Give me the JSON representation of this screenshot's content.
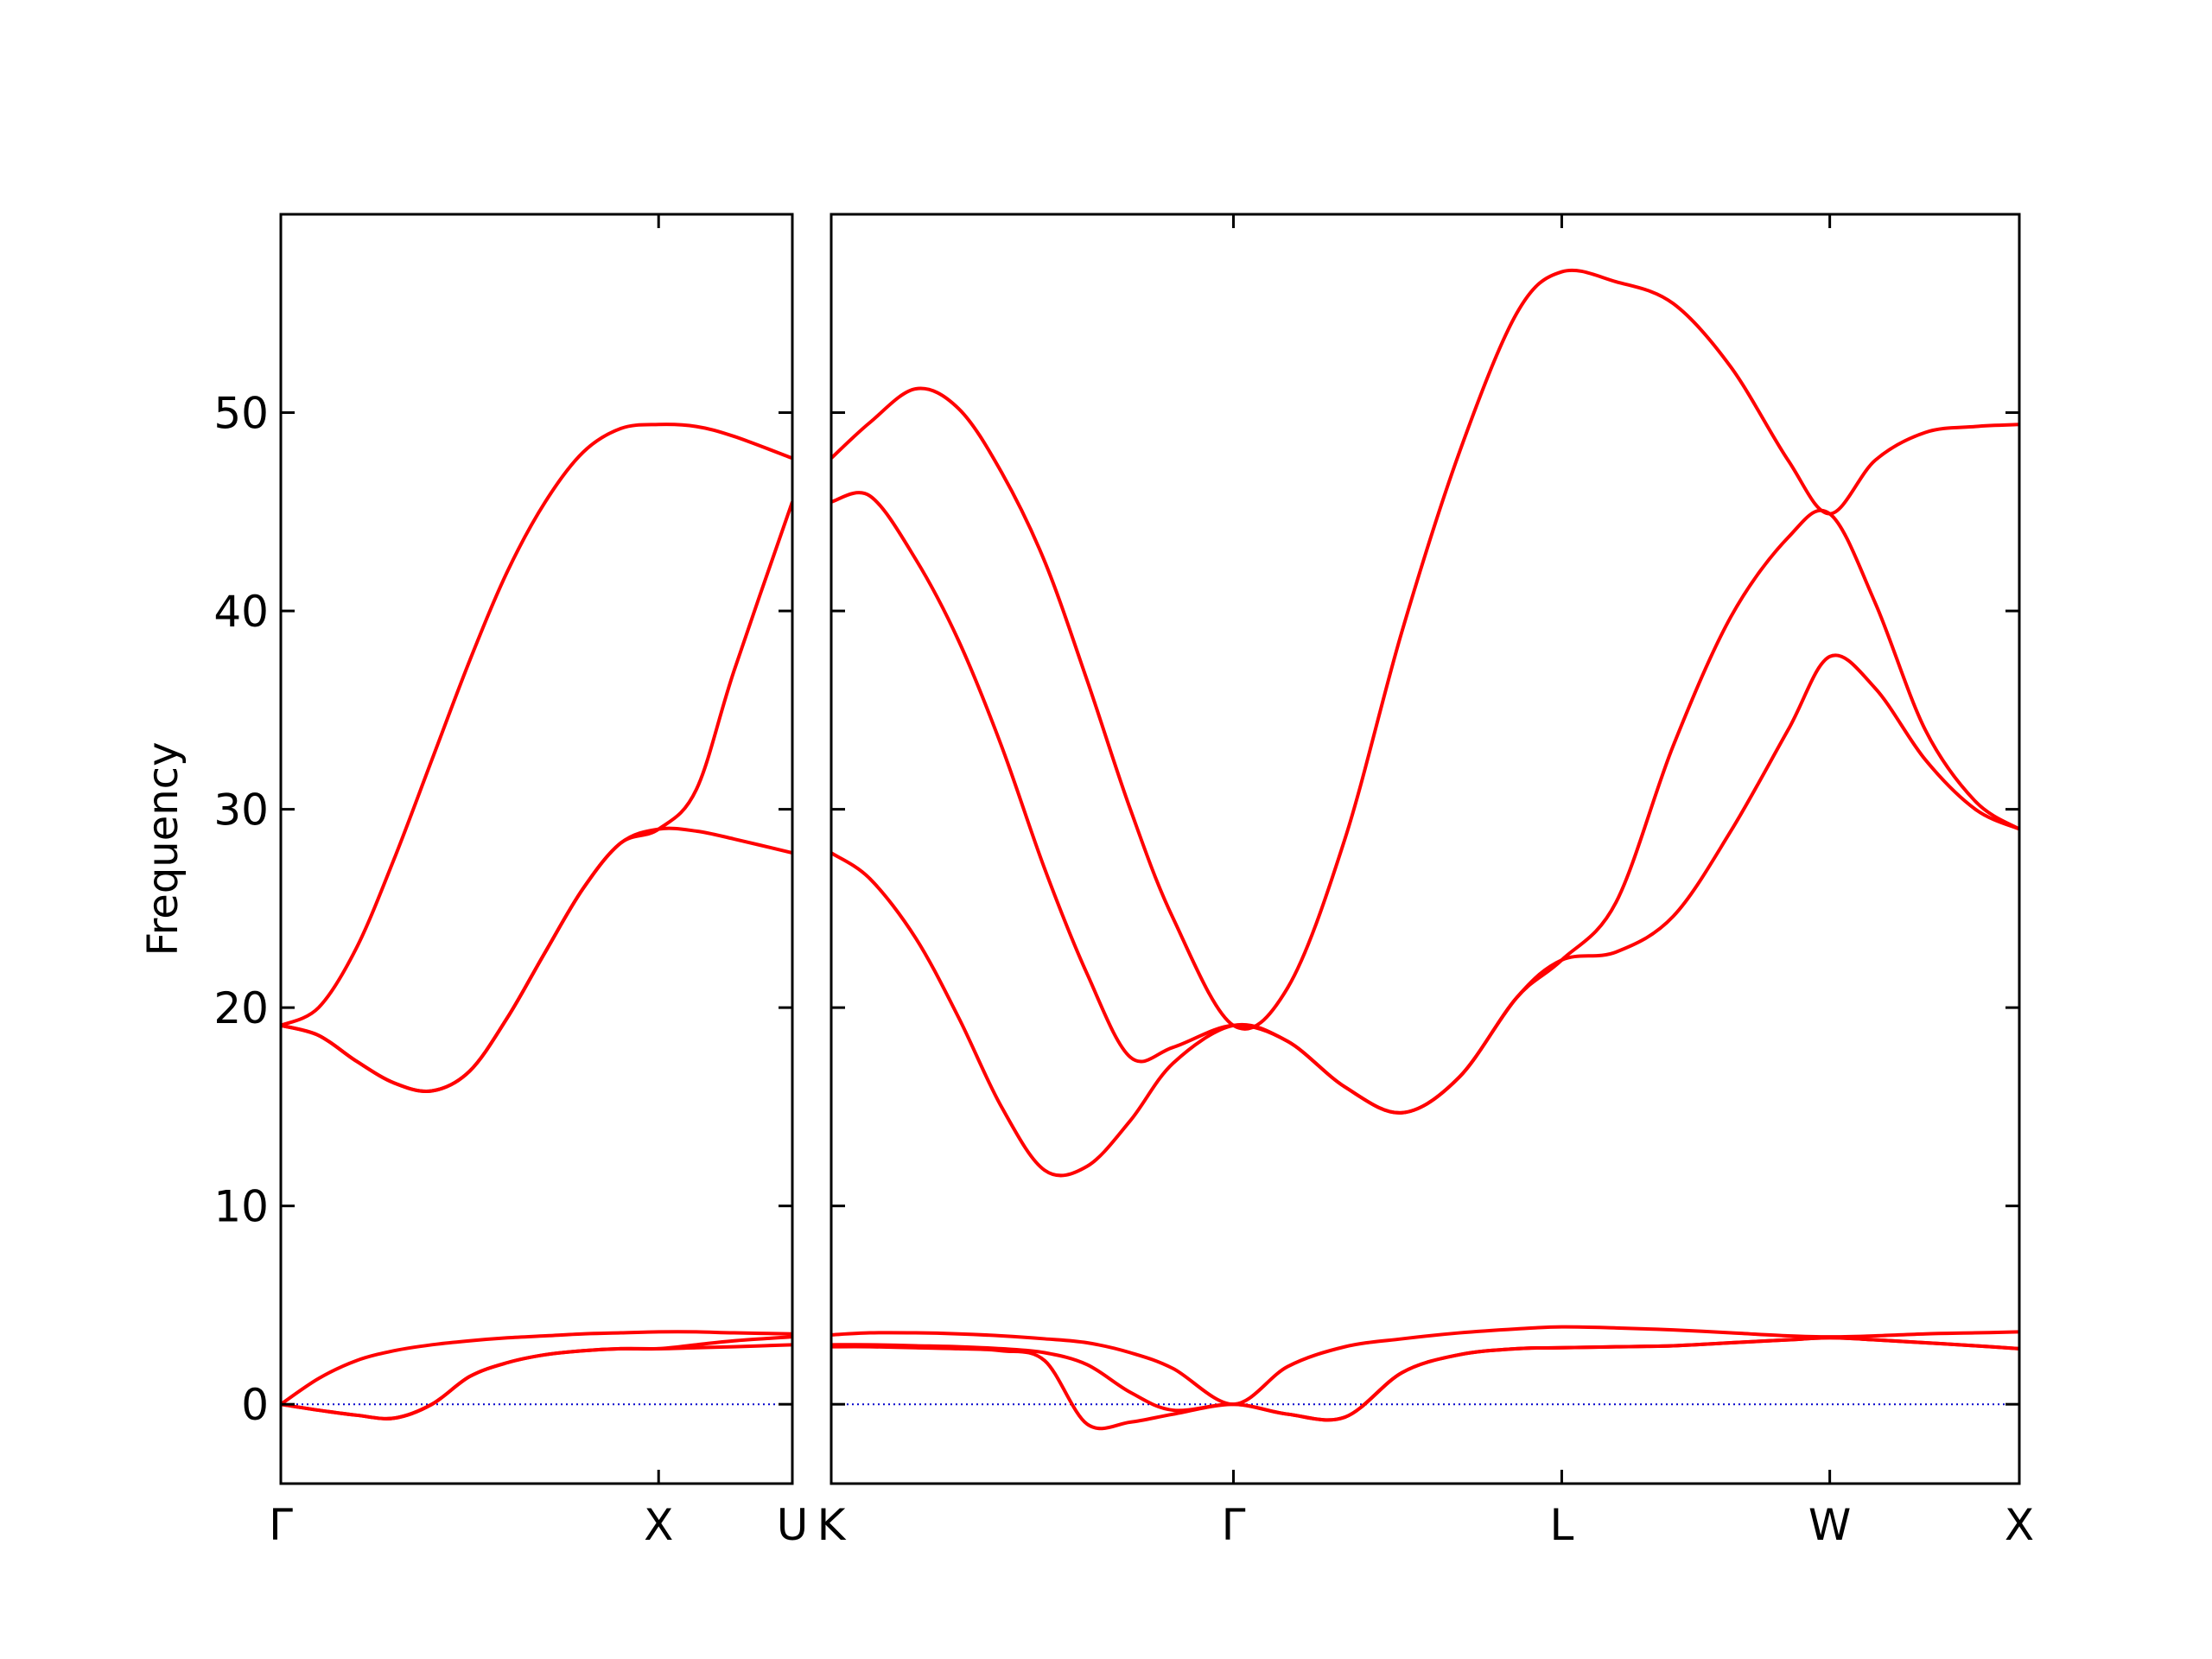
{
  "chart_data": [
    {
      "type": "line",
      "y_label": "Frequency",
      "ytick_labels": true,
      "x": [
        0,
        0.1,
        0.2,
        0.3,
        0.4,
        0.5,
        0.6,
        0.7,
        0.8,
        0.9,
        1.0,
        1.1,
        1.2,
        1.354
      ],
      "xlim": [
        0,
        1.354
      ],
      "ylim": [
        -4,
        60
      ],
      "yticks": [
        0,
        10,
        20,
        30,
        40,
        50
      ],
      "xticks": [
        {
          "value": 0,
          "label": "Γ"
        },
        {
          "value": 1.0,
          "label": "X"
        },
        {
          "value": 1.354,
          "label": "U"
        }
      ],
      "hline": {
        "y": 0,
        "color": "#0000cc"
      },
      "series": [
        {
          "color": "#ff0000",
          "values": [
            0,
            -0.3,
            -0.55,
            -0.7,
            0.0,
            1.4,
            2.1,
            2.5,
            2.7,
            2.8,
            2.8,
            2.85,
            2.9,
            3.0
          ]
        },
        {
          "color": "#ff0000",
          "values": [
            0,
            -0.3,
            -0.55,
            -0.7,
            0.0,
            1.4,
            2.1,
            2.5,
            2.7,
            2.8,
            2.8,
            3.0,
            3.2,
            3.4
          ]
        },
        {
          "color": "#ff0000",
          "values": [
            0,
            1.3,
            2.2,
            2.7,
            3.0,
            3.2,
            3.35,
            3.45,
            3.55,
            3.6,
            3.65,
            3.65,
            3.6,
            3.55
          ]
        },
        {
          "color": "#ff0000",
          "values": [
            19.1,
            18.6,
            17.3,
            16.2,
            15.8,
            16.8,
            19.5,
            22.8,
            26.0,
            28.3,
            29.0,
            28.9,
            28.5,
            27.8
          ]
        },
        {
          "color": "#ff0000",
          "values": [
            19.1,
            18.6,
            17.3,
            16.2,
            15.8,
            16.8,
            19.5,
            22.8,
            26.0,
            28.3,
            29.0,
            31.0,
            37.0,
            45.5
          ]
        },
        {
          "color": "#ff0000",
          "values": [
            19.1,
            20.0,
            23.0,
            27.5,
            32.5,
            37.5,
            42.0,
            45.5,
            48.0,
            49.2,
            49.4,
            49.3,
            48.8,
            47.7
          ]
        }
      ]
    },
    {
      "type": "line",
      "ytick_labels": false,
      "x": [
        1.354,
        1.456,
        1.577,
        1.69,
        1.803,
        1.917,
        2.029,
        2.143,
        2.256,
        2.415,
        2.558,
        2.709,
        2.86,
        3.011,
        3.162,
        3.281,
        3.424,
        3.575,
        3.727,
        3.878,
        3.988,
        4.108,
        4.24,
        4.372,
        4.488
      ],
      "xlim": [
        1.354,
        4.488
      ],
      "ylim": [
        -4,
        60
      ],
      "yticks": [
        0,
        10,
        20,
        30,
        40,
        50
      ],
      "xticks": [
        {
          "value": 1.354,
          "label": "K"
        },
        {
          "value": 2.415,
          "label": "Γ"
        },
        {
          "value": 3.281,
          "label": "L"
        },
        {
          "value": 3.988,
          "label": "W"
        },
        {
          "value": 4.488,
          "label": "X"
        }
      ],
      "hline": {
        "y": 0,
        "color": "#0000cc"
      },
      "series": [
        {
          "color": "#ff0000",
          "values": [
            2.9,
            2.9,
            2.85,
            2.8,
            2.7,
            2.2,
            -1.0,
            -0.9,
            -0.5,
            0,
            -0.5,
            -0.65,
            1.6,
            2.5,
            2.8,
            2.85,
            2.9,
            2.95,
            3.1,
            3.25,
            3.35,
            3.25,
            3.1,
            2.95,
            2.8
          ]
        },
        {
          "color": "#ff0000",
          "values": [
            3.0,
            3.0,
            2.95,
            2.9,
            2.8,
            2.6,
            2.0,
            0.6,
            -0.3,
            0,
            -0.5,
            -0.65,
            1.6,
            2.5,
            2.8,
            2.85,
            2.9,
            2.95,
            3.1,
            3.25,
            3.35,
            3.25,
            3.1,
            2.95,
            2.8
          ]
        },
        {
          "color": "#ff0000",
          "values": [
            3.5,
            3.6,
            3.6,
            3.55,
            3.45,
            3.3,
            3.1,
            2.6,
            1.8,
            0,
            1.9,
            2.9,
            3.3,
            3.6,
            3.8,
            3.9,
            3.85,
            3.75,
            3.6,
            3.45,
            3.4,
            3.45,
            3.55,
            3.6,
            3.65
          ]
        },
        {
          "color": "#ff0000",
          "values": [
            27.8,
            26.5,
            23.5,
            19.5,
            15.0,
            11.8,
            12.0,
            14.3,
            17.2,
            19.1,
            18.3,
            16.0,
            14.7,
            16.5,
            20.5,
            22.4,
            22.8,
            24.6,
            28.9,
            34.0,
            37.7,
            36.1,
            32.5,
            30.0,
            29.0
          ]
        },
        {
          "color": "#ff0000",
          "values": [
            45.5,
            45.8,
            42.6,
            38.5,
            33.2,
            27.0,
            21.7,
            17.5,
            18.0,
            19.1,
            18.3,
            16.0,
            14.7,
            16.5,
            20.5,
            22.4,
            25.3,
            33.2,
            39.7,
            43.7,
            44.9,
            40.4,
            34.0,
            30.4,
            29.0
          ]
        },
        {
          "color": "#ff0000",
          "values": [
            47.7,
            49.5,
            51.2,
            50.2,
            47.0,
            42.5,
            36.5,
            30.0,
            24.5,
            19.1,
            21.0,
            28.5,
            39.0,
            48.0,
            55.0,
            57.1,
            56.6,
            55.5,
            52.3,
            47.6,
            44.9,
            47.6,
            49.0,
            49.3,
            49.4
          ]
        }
      ]
    }
  ]
}
